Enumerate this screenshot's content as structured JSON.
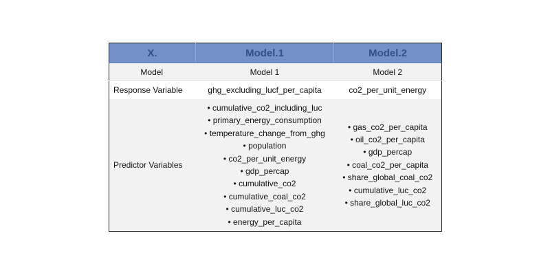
{
  "table": {
    "headers": [
      "X.",
      "Model.1",
      "Model.2"
    ],
    "rows": {
      "model": {
        "label": "Model",
        "model1": "Model 1",
        "model2": "Model 2"
      },
      "response": {
        "label": "Response Variable",
        "model1": "ghg_excluding_lucf_per_capita",
        "model2": "co2_per_unit_energy"
      },
      "predictors": {
        "label": "Predictor Variables",
        "model1": [
          "• cumulative_co2_including_luc",
          "• primary_energy_consumption",
          "• temperature_change_from_ghg",
          "• population",
          "• co2_per_unit_energy",
          "• gdp_percap",
          "• cumulative_co2",
          "• cumulative_coal_co2",
          "• cumulative_luc_co2",
          "• energy_per_capita"
        ],
        "model2": [
          "• gas_co2_per_capita",
          "• oil_co2_per_capita",
          "• gdp_percap",
          "• coal_co2_per_capita",
          "• share_global_coal_co2",
          "• cumulative_luc_co2",
          "• share_global_luc_co2"
        ]
      }
    }
  }
}
